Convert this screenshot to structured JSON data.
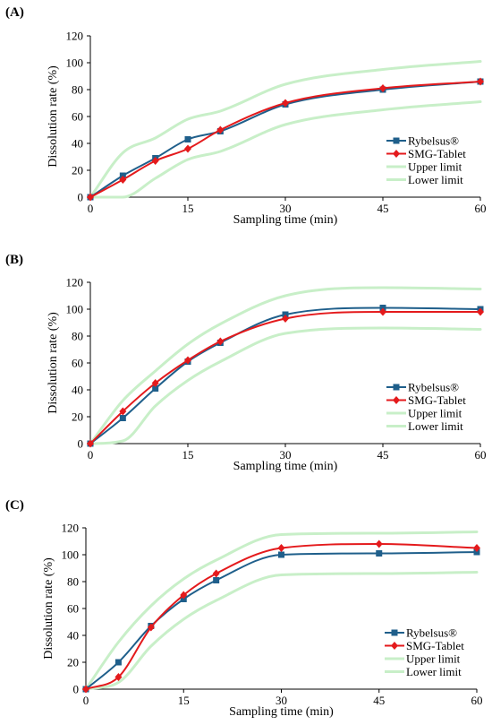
{
  "chart_data": [
    {
      "type": "line",
      "panel_label": "(A)",
      "xlabel": "Sampling time (min)",
      "ylabel": "Dissolution rate (%)",
      "xlim": [
        0,
        60
      ],
      "ylim": [
        0,
        120
      ],
      "xticks": [
        0,
        15,
        30,
        45,
        60
      ],
      "yticks": [
        0,
        20,
        40,
        60,
        80,
        100,
        120
      ],
      "legend_position": "right",
      "grid": false,
      "series": [
        {
          "name": "Rybelsus®",
          "color": "#1f5f8b",
          "marker": "square",
          "x": [
            0,
            5,
            10,
            15,
            20,
            30,
            45,
            60
          ],
          "y": [
            0,
            16,
            29,
            43,
            49,
            69,
            80,
            86
          ]
        },
        {
          "name": "SMG-Tablet",
          "color": "#e41a1c",
          "marker": "diamond",
          "x": [
            0,
            5,
            10,
            15,
            20,
            30,
            45,
            60
          ],
          "y": [
            0,
            13,
            27,
            36,
            50,
            70,
            81,
            86
          ]
        },
        {
          "name": "Upper limit",
          "color": "#c8efc8",
          "marker": "none",
          "x": [
            0,
            5,
            10,
            15,
            20,
            30,
            45,
            60
          ],
          "y": [
            0,
            33,
            44,
            58,
            64,
            84,
            95,
            101
          ]
        },
        {
          "name": "Lower limit",
          "color": "#c8efc8",
          "marker": "none",
          "x": [
            0,
            5,
            10,
            15,
            20,
            30,
            45,
            60
          ],
          "y": [
            0,
            0,
            14,
            28,
            34,
            54,
            65,
            71
          ]
        }
      ]
    },
    {
      "type": "line",
      "panel_label": "(B)",
      "xlabel": "Sampling time (min)",
      "ylabel": "Dissolution rate (%)",
      "xlim": [
        0,
        60
      ],
      "ylim": [
        0,
        120
      ],
      "xticks": [
        0,
        15,
        30,
        45,
        60
      ],
      "yticks": [
        0,
        20,
        40,
        60,
        80,
        100,
        120
      ],
      "legend_position": "right",
      "grid": false,
      "series": [
        {
          "name": "Rybelsus®",
          "color": "#1f5f8b",
          "marker": "square",
          "x": [
            0,
            5,
            10,
            15,
            20,
            30,
            45,
            60
          ],
          "y": [
            0,
            19,
            41,
            61,
            75,
            96,
            101,
            100
          ]
        },
        {
          "name": "SMG-Tablet",
          "color": "#e41a1c",
          "marker": "diamond",
          "x": [
            0,
            5,
            10,
            15,
            20,
            30,
            45,
            60
          ],
          "y": [
            0,
            24,
            45,
            62,
            76,
            93,
            98,
            98
          ]
        },
        {
          "name": "Upper limit",
          "color": "#c8efc8",
          "marker": "none",
          "x": [
            0,
            5,
            10,
            15,
            20,
            30,
            45,
            60
          ],
          "y": [
            0,
            32,
            54,
            74,
            89,
            110,
            116,
            115
          ]
        },
        {
          "name": "Lower limit",
          "color": "#c8efc8",
          "marker": "none",
          "x": [
            0,
            5,
            10,
            15,
            20,
            30,
            45,
            60
          ],
          "y": [
            0,
            2,
            28,
            47,
            61,
            82,
            86,
            85
          ]
        }
      ]
    },
    {
      "type": "line",
      "panel_label": "(C)",
      "xlabel": "Sampling time (min)",
      "ylabel": "Dissolution rate (%)",
      "xlim": [
        0,
        60
      ],
      "ylim": [
        0,
        120
      ],
      "xticks": [
        0,
        15,
        30,
        45,
        60
      ],
      "yticks": [
        0,
        20,
        40,
        60,
        80,
        100,
        120
      ],
      "legend_position": "right",
      "grid": false,
      "series": [
        {
          "name": "Rybelsus®",
          "color": "#1f5f8b",
          "marker": "square",
          "x": [
            0,
            5,
            10,
            15,
            20,
            30,
            45,
            60
          ],
          "y": [
            0,
            20,
            47,
            67,
            81,
            100,
            101,
            102
          ]
        },
        {
          "name": "SMG-Tablet",
          "color": "#e41a1c",
          "marker": "diamond",
          "x": [
            0,
            5,
            10,
            15,
            20,
            30,
            45,
            60
          ],
          "y": [
            0,
            9,
            46,
            70,
            86,
            105,
            108,
            105
          ]
        },
        {
          "name": "Upper limit",
          "color": "#c8efc8",
          "marker": "none",
          "x": [
            0,
            5,
            10,
            15,
            20,
            30,
            45,
            60
          ],
          "y": [
            0,
            35,
            62,
            82,
            96,
            115,
            116,
            117
          ]
        },
        {
          "name": "Lower limit",
          "color": "#c8efc8",
          "marker": "none",
          "x": [
            0,
            5,
            10,
            15,
            20,
            30,
            45,
            60
          ],
          "y": [
            0,
            5,
            32,
            52,
            66,
            85,
            86,
            87
          ]
        }
      ]
    }
  ]
}
